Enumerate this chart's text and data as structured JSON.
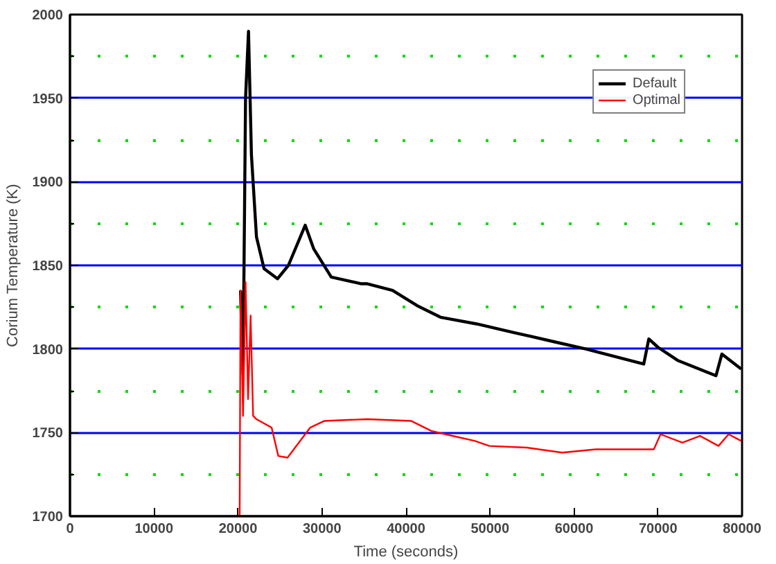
{
  "chart_data": {
    "type": "line",
    "xlabel": "Time (seconds)",
    "ylabel": "Corium Temperature (K)",
    "xlim": [
      0,
      80000
    ],
    "xticks": [
      0,
      10000,
      20000,
      30000,
      40000,
      50000,
      60000,
      70000,
      80000
    ],
    "ylim": [
      1700,
      2000
    ],
    "yticks": [
      1700,
      1750,
      1800,
      1850,
      1900,
      1950,
      2000
    ],
    "grid": "y",
    "legend": "top right",
    "series": [
      {
        "name": "Default",
        "color": "#000000",
        "x": [
          20300,
          20600,
          20900,
          21250,
          21600,
          22200,
          23100,
          24700,
          26000,
          28000,
          29000,
          31100,
          34700,
          35400,
          38400,
          41300,
          44100,
          48400,
          52700,
          57900,
          61400,
          68300,
          68900,
          70000,
          72400,
          76900,
          77600,
          79900
        ],
        "values": [
          1835,
          1785,
          1950,
          1990,
          1916,
          1867,
          1848,
          1842,
          1850,
          1874,
          1860,
          1843,
          1839,
          1839,
          1835,
          1826,
          1819,
          1815,
          1810,
          1804,
          1800,
          1791,
          1806,
          1801,
          1793,
          1784,
          1797,
          1788
        ]
      },
      {
        "name": "Optimal",
        "color": "#ff0000",
        "x": [
          20200,
          20300,
          20600,
          20900,
          21200,
          21500,
          21800,
          22200,
          24000,
          24800,
          25900,
          28600,
          30300,
          35400,
          40600,
          43000,
          44700,
          48200,
          49900,
          54400,
          58600,
          62600,
          69500,
          70300,
          72900,
          75000,
          77200,
          78400,
          79900
        ],
        "values": [
          1700,
          1835,
          1760,
          1840,
          1770,
          1820,
          1760,
          1758,
          1753,
          1736,
          1735,
          1753,
          1757,
          1758,
          1757,
          1751,
          1749,
          1745,
          1742,
          1741,
          1738,
          1740,
          1740,
          1749,
          1744,
          1748,
          1742,
          1749,
          1745
        ]
      }
    ]
  }
}
